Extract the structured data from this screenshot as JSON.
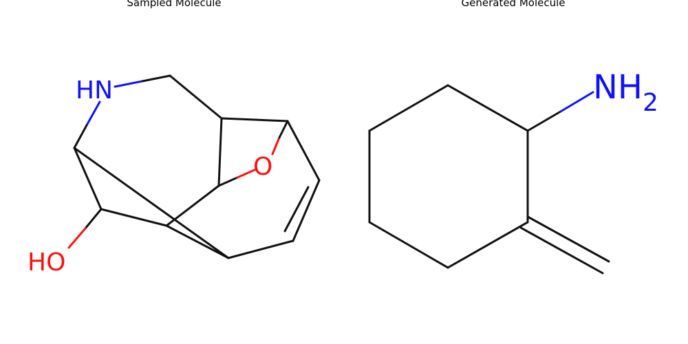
{
  "panels": [
    {
      "title": "Sampled Molecule",
      "atoms": {
        "amine": "HN",
        "ether": "O",
        "hydroxyl": "HO"
      }
    },
    {
      "title": "Generated Molecule",
      "atoms": {
        "amine_main": "NH",
        "amine_sub": "2"
      }
    }
  ],
  "colors": {
    "bond": "#111111",
    "nitrogen": "#1010ff",
    "oxygen": "#ff1010",
    "title": "#000000"
  }
}
